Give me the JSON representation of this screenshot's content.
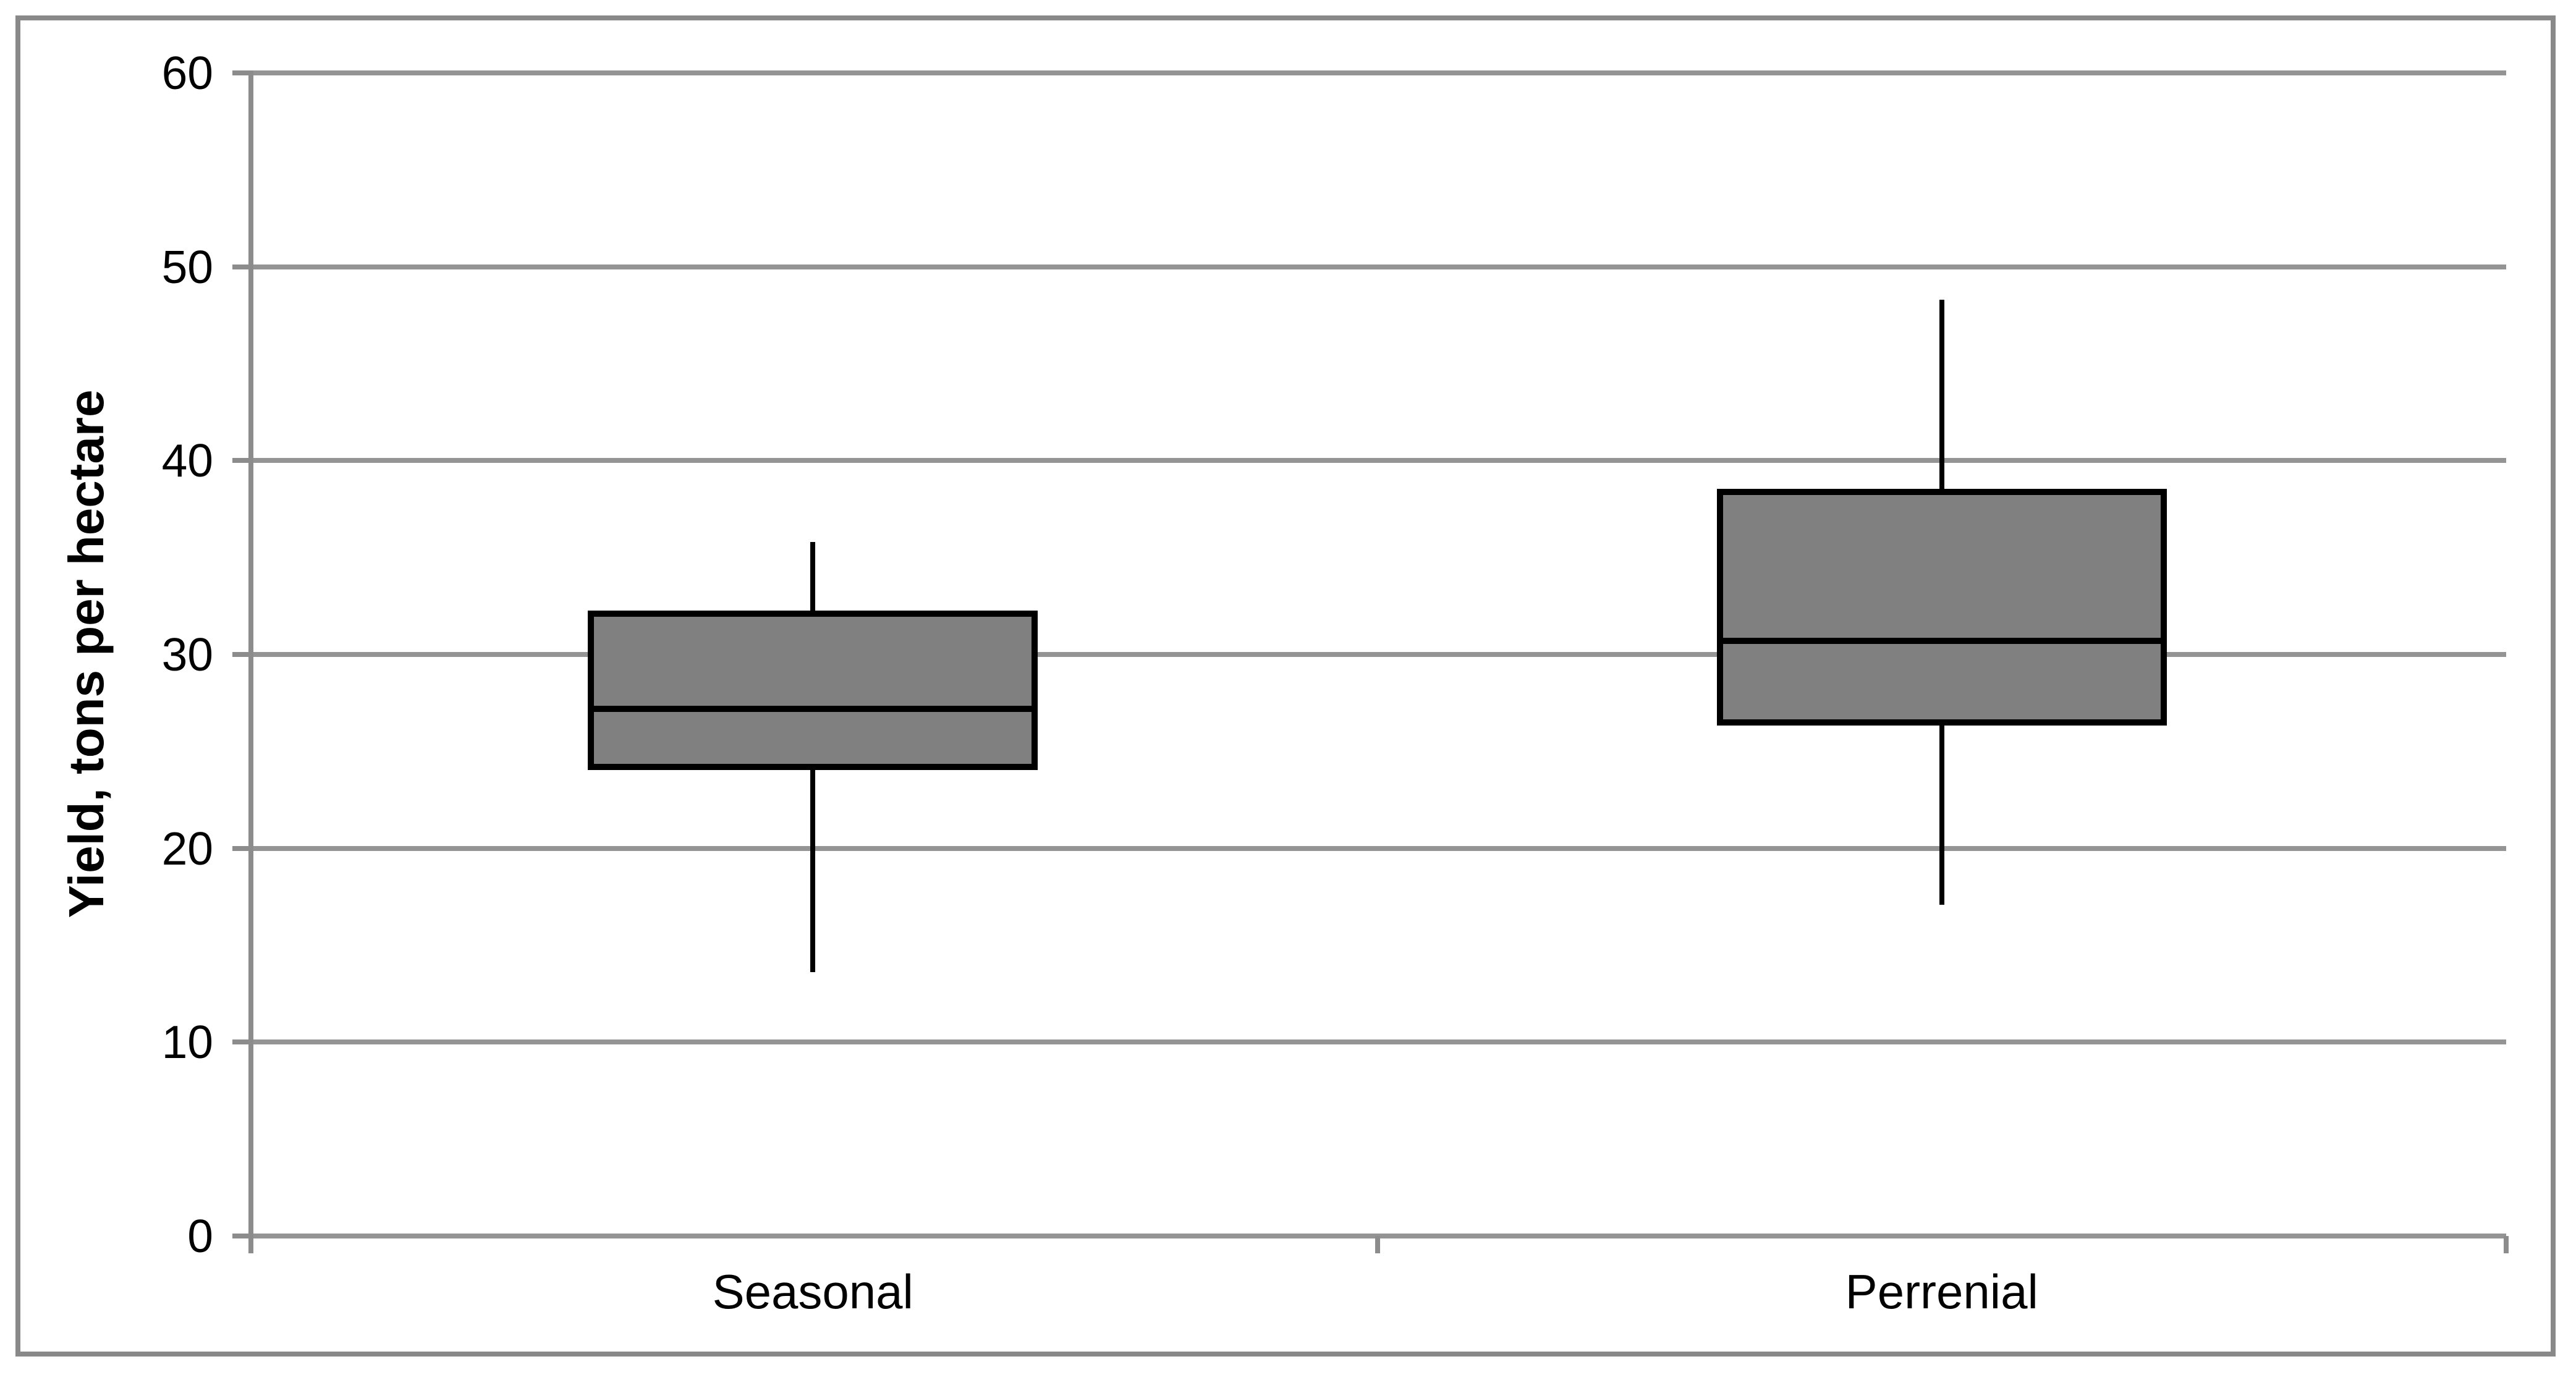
{
  "chart_data": {
    "type": "boxplot",
    "title": "",
    "xlabel": "",
    "ylabel": "Yield, tons per hectare",
    "categories": [
      "Seasonal",
      "Perrenial"
    ],
    "ylim": [
      0,
      60
    ],
    "y_ticks": [
      60,
      50,
      40,
      30,
      20,
      10,
      0
    ],
    "y_tick_labels": [
      "60",
      "50",
      "40",
      "30",
      "20",
      "10",
      "0"
    ],
    "grid": true,
    "legend": "none",
    "series": [
      {
        "name": "Seasonal",
        "min": 13.6,
        "q1": 24.2,
        "median": 27.2,
        "q3": 32.1,
        "max": 35.8
      },
      {
        "name": "Perrenial",
        "min": 17.1,
        "q1": 26.5,
        "median": 30.7,
        "q3": 38.4,
        "max": 48.3
      }
    ],
    "colors": {
      "box_fill": "#808080",
      "box_border": "#000000",
      "median_line": "#000000",
      "whisker": "#000000",
      "gridline": "#949494",
      "axis_line": "#8c8c8c",
      "frame_border": "#898989",
      "text": "#000000",
      "background": "#ffffff"
    }
  }
}
